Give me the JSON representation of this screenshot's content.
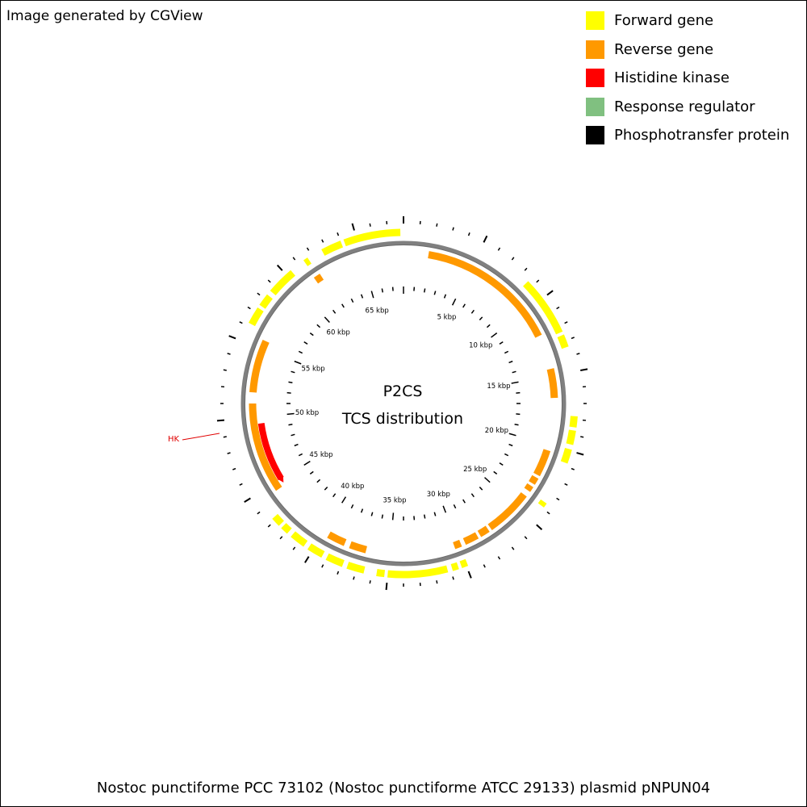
{
  "header": {
    "credit": "Image generated by CGView"
  },
  "legend": [
    {
      "label": "Forward gene",
      "color": "#ffff00"
    },
    {
      "label": "Reverse gene",
      "color": "#ff9900"
    },
    {
      "label": "Histidine kinase",
      "color": "#ff0000"
    },
    {
      "label": "Response regulator",
      "color": "#80c080"
    },
    {
      "label": "Phosphotransfer protein",
      "color": "#000000"
    }
  ],
  "map": {
    "title_line1": "P2CS",
    "title_line2": "TCS distribution",
    "genome_length_kbp": 68,
    "tick_labels": [
      "5 kbp",
      "10 kbp",
      "15 kbp",
      "20 kbp",
      "25 kbp",
      "30 kbp",
      "35 kbp",
      "40 kbp",
      "45 kbp",
      "50 kbp",
      "55 kbp",
      "60 kbp",
      "65 kbp"
    ],
    "backbone_color": "#808080",
    "forward_genes_kbp": [
      [
        64.2,
        67.8
      ],
      [
        62.7,
        64.0
      ],
      [
        61.4,
        61.7
      ],
      [
        58.6,
        60.4
      ],
      [
        57.5,
        58.3
      ],
      [
        56.2,
        57.3
      ],
      [
        8.6,
        12.4
      ],
      [
        12.6,
        13.4
      ],
      [
        17.8,
        18.5
      ],
      [
        18.7,
        19.6
      ],
      [
        19.9,
        20.8
      ],
      [
        23.6,
        23.9
      ],
      [
        29.9,
        30.3
      ],
      [
        30.5,
        30.9
      ],
      [
        31.2,
        35.0
      ],
      [
        35.2,
        35.7
      ],
      [
        36.5,
        37.6
      ],
      [
        37.9,
        39.0
      ],
      [
        39.3,
        40.3
      ],
      [
        40.6,
        41.6
      ],
      [
        41.9,
        42.4
      ],
      [
        42.6,
        43.2
      ]
    ],
    "reverse_genes_kbp": [
      [
        1.8,
        12.0
      ],
      [
        14.5,
        16.6
      ],
      [
        20.4,
        22.3
      ],
      [
        22.5,
        23.0
      ],
      [
        23.2,
        23.6
      ],
      [
        24.0,
        27.4
      ],
      [
        27.6,
        28.3
      ],
      [
        28.5,
        29.5
      ],
      [
        29.8,
        30.3
      ],
      [
        36.7,
        37.9
      ],
      [
        38.3,
        39.6
      ],
      [
        44.5,
        51.0
      ],
      [
        51.8,
        55.6
      ],
      [
        61.3,
        61.8
      ]
    ],
    "histidine_kinase_kbp": [
      44.7,
      49.5
    ],
    "hk_label": "HK",
    "hk_color": "#e00000"
  },
  "footer": {
    "organism": "Nostoc punctiforme PCC 73102 (Nostoc punctiforme ATCC 29133) plasmid pNPUN04"
  }
}
